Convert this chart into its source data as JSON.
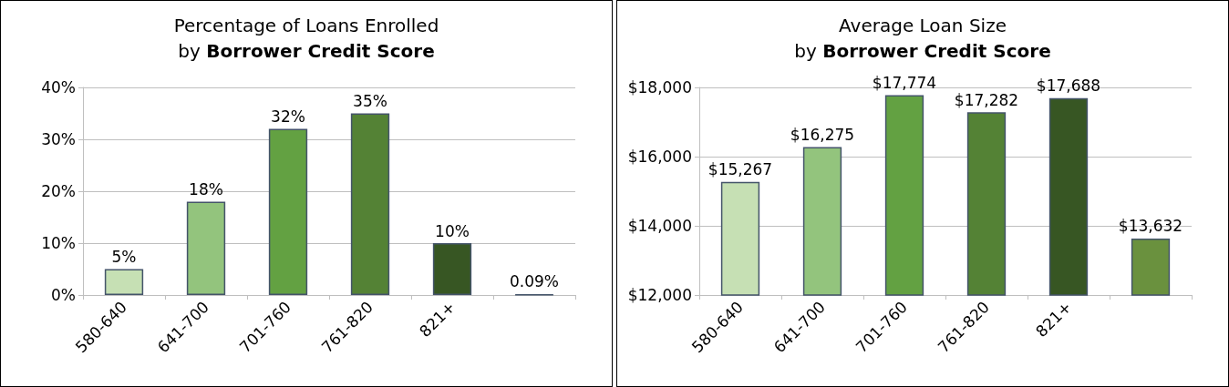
{
  "chart_data": [
    {
      "type": "bar",
      "title": "Percentage of Loans Enrolled",
      "subtitle": "by Borrower Credit Score",
      "categories": [
        "580-640",
        "641-700",
        "701-760",
        "761-820",
        "821+",
        null
      ],
      "values": [
        5,
        18,
        32,
        35,
        10,
        0.09
      ],
      "colors": [
        "#c6e0b4",
        "#93c47d",
        "#63a142",
        "#548235",
        "#375623",
        "#44546a"
      ],
      "value_labels": [
        "5%",
        "18%",
        "32%",
        "35%",
        "10%",
        "0.09%"
      ],
      "ylim": [
        0,
        40
      ],
      "yticks": [
        {
          "value": 0,
          "label": "0%"
        },
        {
          "value": 10,
          "label": "10%"
        },
        {
          "value": 20,
          "label": "20%"
        },
        {
          "value": 30,
          "label": "30%"
        },
        {
          "value": 40,
          "label": "40%"
        }
      ],
      "grid": "y"
    },
    {
      "type": "bar",
      "title": "Average Loan Size",
      "subtitle": "by Borrower Credit Score",
      "categories": [
        "580-640",
        "641-700",
        "701-760",
        "761-820",
        "821+",
        null
      ],
      "values": [
        15267,
        16275,
        17774,
        17282,
        17688,
        13632
      ],
      "colors": [
        "#c6e0b4",
        "#93c47d",
        "#63a142",
        "#548235",
        "#375623",
        "#6a913e"
      ],
      "value_labels": [
        "$15,267",
        "$16,275",
        "$17,774",
        "$17,282",
        "$17,688",
        "$13,632"
      ],
      "ylim": [
        12000,
        18000
      ],
      "yticks": [
        {
          "value": 12000,
          "label": "$12,000"
        },
        {
          "value": 14000,
          "label": "$14,000"
        },
        {
          "value": 16000,
          "label": "$16,000"
        },
        {
          "value": 18000,
          "label": "$18,000"
        }
      ],
      "grid": "y"
    }
  ]
}
